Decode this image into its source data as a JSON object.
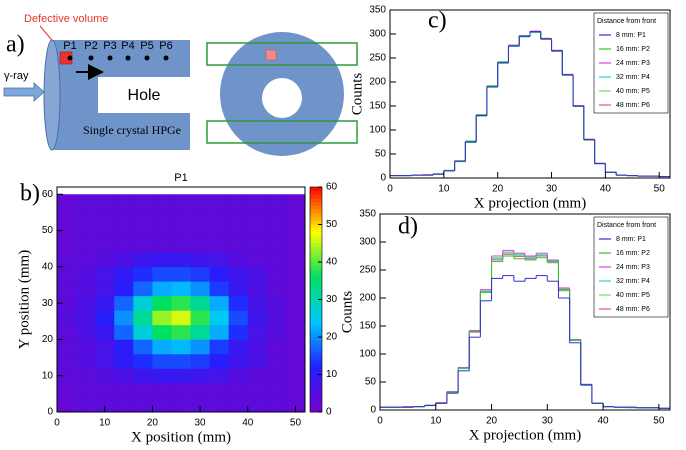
{
  "diagram": {
    "label": "a)",
    "defect_label": "Defective volume",
    "positions": [
      "P1",
      "P2",
      "P3",
      "P4",
      "P5",
      "P6"
    ],
    "source_label": "γ-ray",
    "hole_label": "Hole",
    "detector_label": "Single crystal HPGe"
  },
  "chart_data": [
    {
      "type": "heatmap",
      "label": "b)",
      "title": "P1",
      "x_label": "X position (mm)",
      "y_label": "Y position (mm)",
      "xedges": [
        0,
        4,
        8,
        12,
        16,
        20,
        24,
        28,
        32,
        36,
        40,
        44,
        48,
        52
      ],
      "yedges": [
        0,
        4,
        8,
        12,
        16,
        20,
        24,
        28,
        32,
        36,
        40,
        44,
        48,
        52,
        56,
        60
      ],
      "z": [
        [
          3,
          4,
          4,
          4,
          4,
          4,
          4,
          4,
          4,
          4,
          4,
          4,
          3
        ],
        [
          3,
          4,
          4,
          4,
          4,
          4,
          4,
          4,
          4,
          4,
          4,
          4,
          3
        ],
        [
          4,
          4,
          5,
          6,
          8,
          9,
          9,
          8,
          7,
          5,
          4,
          4,
          3
        ],
        [
          4,
          5,
          7,
          10,
          13,
          15,
          15,
          14,
          11,
          8,
          6,
          4,
          3
        ],
        [
          4,
          5,
          7,
          11,
          17,
          22,
          23,
          20,
          14,
          9,
          6,
          4,
          3
        ],
        [
          4,
          6,
          9,
          17,
          27,
          36,
          38,
          32,
          22,
          13,
          7,
          5,
          3
        ],
        [
          5,
          6,
          11,
          20,
          32,
          43,
          46,
          38,
          25,
          15,
          8,
          5,
          3
        ],
        [
          4,
          6,
          9,
          17,
          27,
          36,
          38,
          32,
          22,
          13,
          7,
          5,
          3
        ],
        [
          4,
          5,
          7,
          11,
          17,
          22,
          23,
          20,
          14,
          9,
          6,
          4,
          3
        ],
        [
          4,
          5,
          7,
          10,
          13,
          15,
          15,
          14,
          11,
          8,
          6,
          4,
          3
        ],
        [
          4,
          4,
          5,
          6,
          8,
          9,
          9,
          8,
          7,
          5,
          4,
          4,
          3
        ],
        [
          3,
          4,
          4,
          4,
          4,
          4,
          4,
          4,
          4,
          4,
          4,
          4,
          3
        ],
        [
          3,
          4,
          4,
          4,
          4,
          4,
          4,
          4,
          4,
          4,
          4,
          4,
          3
        ],
        [
          3,
          4,
          4,
          4,
          4,
          4,
          4,
          4,
          4,
          4,
          4,
          4,
          3
        ],
        [
          3,
          4,
          4,
          4,
          4,
          4,
          4,
          4,
          4,
          4,
          4,
          4,
          3
        ]
      ],
      "xlim": [
        0,
        52
      ],
      "ylim": [
        0,
        62
      ],
      "xticks": [
        0,
        10,
        20,
        30,
        40,
        50
      ],
      "yticks": [
        0,
        10,
        20,
        30,
        40,
        50,
        60
      ],
      "zlim": [
        0,
        60
      ],
      "zticks": [
        0,
        10,
        20,
        30,
        40,
        50,
        60
      ],
      "colorscale": [
        "#7a00c8",
        "#2020ff",
        "#00c8ff",
        "#00e060",
        "#ffff00",
        "#ff0000"
      ]
    },
    {
      "type": "histogram",
      "label": "c)",
      "x_label": "X projection (mm)",
      "y_label": "Counts",
      "legend_title": "Distance from front",
      "legend": "upper right",
      "bins": [
        0,
        2,
        4,
        6,
        8,
        10,
        12,
        14,
        16,
        18,
        20,
        22,
        24,
        26,
        28,
        30,
        32,
        34,
        36,
        38,
        40,
        42,
        44,
        46,
        48,
        50,
        52
      ],
      "series": [
        {
          "name": "8 mm: P1",
          "color": "#3030d0",
          "values": [
            5,
            5,
            6,
            6,
            8,
            15,
            35,
            75,
            130,
            190,
            240,
            275,
            295,
            305,
            290,
            265,
            215,
            150,
            80,
            30,
            12,
            6,
            5,
            4,
            4,
            3
          ]
        },
        {
          "name": "16 mm: P2",
          "color": "#30c030",
          "values": [
            5,
            5,
            6,
            6,
            8,
            16,
            36,
            77,
            132,
            192,
            242,
            276,
            296,
            304,
            289,
            264,
            214,
            149,
            79,
            30,
            12,
            6,
            5,
            4,
            4,
            3
          ]
        },
        {
          "name": "24 mm: P3",
          "color": "#e040e0",
          "values": [
            5,
            5,
            6,
            7,
            8,
            15,
            35,
            76,
            131,
            191,
            241,
            277,
            297,
            306,
            291,
            266,
            216,
            151,
            80,
            31,
            12,
            6,
            5,
            4,
            4,
            3
          ]
        },
        {
          "name": "32 mm: P4",
          "color": "#30d0d0",
          "values": [
            5,
            5,
            6,
            6,
            8,
            15,
            34,
            74,
            129,
            189,
            239,
            274,
            294,
            303,
            289,
            264,
            214,
            149,
            79,
            30,
            12,
            6,
            5,
            4,
            4,
            3
          ]
        },
        {
          "name": "40 mm: P5",
          "color": "#70e070",
          "values": [
            5,
            5,
            6,
            6,
            9,
            15,
            35,
            75,
            130,
            190,
            240,
            276,
            295,
            305,
            290,
            265,
            215,
            150,
            80,
            30,
            12,
            6,
            5,
            4,
            4,
            3
          ]
        },
        {
          "name": "48 mm: P6",
          "color": "#f05070",
          "values": [
            5,
            5,
            6,
            6,
            8,
            15,
            35,
            75,
            131,
            191,
            240,
            275,
            296,
            304,
            290,
            266,
            215,
            150,
            81,
            30,
            12,
            6,
            5,
            4,
            4,
            3
          ]
        }
      ],
      "xlim": [
        0,
        52
      ],
      "ylim": [
        0,
        350
      ],
      "xticks": [
        0,
        10,
        20,
        30,
        40,
        50
      ],
      "yticks": [
        0,
        50,
        100,
        150,
        200,
        250,
        300,
        350
      ]
    },
    {
      "type": "histogram",
      "label": "d)",
      "x_label": "X projection (mm)",
      "y_label": "Counts",
      "legend_title": "Distance from front",
      "legend": "upper right",
      "bins": [
        0,
        2,
        4,
        6,
        8,
        10,
        12,
        14,
        16,
        18,
        20,
        22,
        24,
        26,
        28,
        30,
        32,
        34,
        36,
        38,
        40,
        42,
        44,
        46,
        48,
        50,
        52
      ],
      "series": [
        {
          "name": "8 mm: P1",
          "color": "#3030d0",
          "values": [
            5,
            5,
            5,
            6,
            8,
            12,
            30,
            70,
            130,
            195,
            235,
            240,
            230,
            235,
            240,
            230,
            200,
            120,
            45,
            12,
            6,
            5,
            5,
            4,
            4,
            3
          ]
        },
        {
          "name": "16 mm: P2",
          "color": "#30c030",
          "values": [
            5,
            5,
            5,
            6,
            8,
            12,
            32,
            75,
            140,
            210,
            265,
            275,
            270,
            268,
            272,
            265,
            215,
            125,
            45,
            12,
            6,
            5,
            5,
            4,
            4,
            3
          ]
        },
        {
          "name": "24 mm: P3",
          "color": "#e040e0",
          "values": [
            5,
            5,
            6,
            6,
            8,
            13,
            33,
            76,
            142,
            215,
            275,
            285,
            280,
            275,
            280,
            268,
            218,
            126,
            46,
            12,
            6,
            5,
            5,
            4,
            4,
            3
          ]
        },
        {
          "name": "32 mm: P4",
          "color": "#30d0d0",
          "values": [
            5,
            5,
            5,
            6,
            9,
            12,
            31,
            74,
            140,
            212,
            270,
            282,
            278,
            272,
            276,
            266,
            216,
            124,
            44,
            12,
            6,
            5,
            4,
            4,
            4,
            3
          ]
        },
        {
          "name": "40 mm: P5",
          "color": "#70e070",
          "values": [
            5,
            5,
            5,
            6,
            8,
            12,
            32,
            75,
            141,
            213,
            272,
            280,
            276,
            274,
            278,
            264,
            214,
            125,
            45,
            12,
            6,
            5,
            5,
            4,
            4,
            3
          ]
        },
        {
          "name": "48 mm: P6",
          "color": "#f05070",
          "values": [
            5,
            5,
            6,
            6,
            8,
            13,
            32,
            74,
            139,
            211,
            268,
            278,
            274,
            270,
            275,
            263,
            213,
            124,
            44,
            12,
            6,
            5,
            5,
            4,
            4,
            3
          ]
        }
      ],
      "xlim": [
        0,
        52
      ],
      "ylim": [
        0,
        350
      ],
      "xticks": [
        0,
        10,
        20,
        30,
        40,
        50
      ],
      "yticks": [
        0,
        50,
        100,
        150,
        200,
        250,
        300,
        350
      ]
    }
  ]
}
